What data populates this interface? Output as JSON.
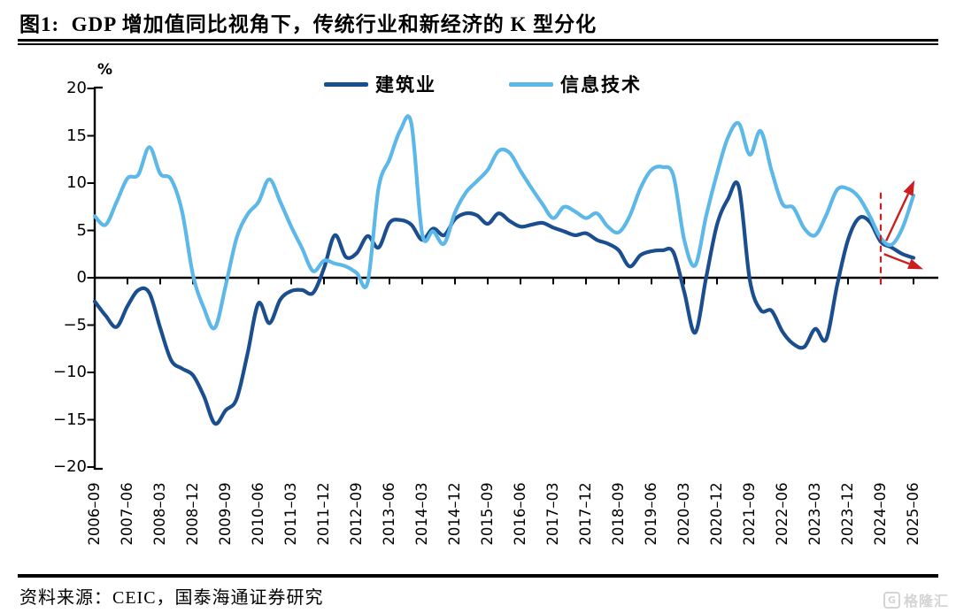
{
  "header": {
    "title": "图1:  GDP 增加值同比视角下，传统行业和新经济的 K 型分化"
  },
  "chart_meta": {
    "unit_label": "%"
  },
  "chart_data": {
    "type": "line",
    "title": "GDP 增加值同比视角下，传统行业和新经济的 K 型分化",
    "unit": "%",
    "ylim": [
      -20,
      20
    ],
    "y_ticks": [
      20,
      15,
      10,
      5,
      0,
      -5,
      -10,
      -15,
      -20
    ],
    "grid": false,
    "legend_position": "top-center",
    "x_tick_labels": [
      "2006-09",
      "2007-06",
      "2008-03",
      "2008-12",
      "2009-09",
      "2010-06",
      "2011-03",
      "2011-12",
      "2012-09",
      "2013-06",
      "2014-03",
      "2014-12",
      "2015-09",
      "2016-06",
      "2017-03",
      "2017-12",
      "2018-09",
      "2019-06",
      "2020-03",
      "2020-12",
      "2021-09",
      "2022-06",
      "2023-03",
      "2023-12",
      "2024-09",
      "2025-06"
    ],
    "x": [
      "2006-09",
      "2006-12",
      "2007-03",
      "2007-06",
      "2007-09",
      "2007-12",
      "2008-03",
      "2008-06",
      "2008-09",
      "2008-12",
      "2009-03",
      "2009-06",
      "2009-09",
      "2009-12",
      "2010-03",
      "2010-06",
      "2010-09",
      "2010-12",
      "2011-03",
      "2011-06",
      "2011-09",
      "2011-12",
      "2012-03",
      "2012-06",
      "2012-09",
      "2012-12",
      "2013-03",
      "2013-06",
      "2013-09",
      "2013-12",
      "2014-03",
      "2014-06",
      "2014-09",
      "2014-12",
      "2015-03",
      "2015-06",
      "2015-09",
      "2015-12",
      "2016-03",
      "2016-06",
      "2016-09",
      "2016-12",
      "2017-03",
      "2017-06",
      "2017-09",
      "2017-12",
      "2018-03",
      "2018-06",
      "2018-09",
      "2018-12",
      "2019-03",
      "2019-06",
      "2019-09",
      "2019-12",
      "2020-03",
      "2020-06",
      "2020-09",
      "2020-12",
      "2021-03",
      "2021-06",
      "2021-09",
      "2021-12",
      "2022-03",
      "2022-06",
      "2022-09",
      "2022-12",
      "2023-03",
      "2023-06",
      "2023-09",
      "2023-12",
      "2024-03",
      "2024-06",
      "2024-09",
      "2024-12",
      "2025-03",
      "2025-06"
    ],
    "series": [
      {
        "name": "建筑业",
        "color": "#1a4e8e",
        "values": [
          -2.5,
          -4.0,
          -5.2,
          -3.0,
          -1.3,
          -1.6,
          -5.3,
          -8.7,
          -9.6,
          -10.3,
          -12.5,
          -15.4,
          -14.0,
          -12.8,
          -8.0,
          -2.7,
          -4.8,
          -2.3,
          -1.4,
          -1.3,
          -1.6,
          1.0,
          4.5,
          2.2,
          2.6,
          4.4,
          3.2,
          5.8,
          6.1,
          5.6,
          4.0,
          5.2,
          4.5,
          6.2,
          6.8,
          6.6,
          5.7,
          6.8,
          6.0,
          5.4,
          5.6,
          5.8,
          5.3,
          4.9,
          4.5,
          4.7,
          4.0,
          3.6,
          2.9,
          1.2,
          2.4,
          2.8,
          2.9,
          2.7,
          -1.5,
          -5.8,
          0.0,
          5.6,
          8.3,
          9.6,
          -0.2,
          -3.4,
          -3.5,
          -5.7,
          -7.0,
          -7.3,
          -5.4,
          -6.5,
          -0.8,
          4.0,
          6.3,
          5.9,
          3.8,
          3.2,
          2.5,
          2.1
        ]
      },
      {
        "name": "信息技术",
        "color": "#5cb8e8",
        "values": [
          6.5,
          5.6,
          8.0,
          10.5,
          10.9,
          13.8,
          11.0,
          10.4,
          7.0,
          0.3,
          -3.2,
          -5.3,
          -0.8,
          4.2,
          6.7,
          8.0,
          10.4,
          8.0,
          5.4,
          3.1,
          0.7,
          1.8,
          1.5,
          1.2,
          0.5,
          -0.5,
          9.5,
          12.5,
          15.6,
          16.3,
          4.6,
          4.9,
          3.6,
          6.9,
          9.0,
          10.2,
          11.4,
          13.4,
          13.2,
          11.3,
          9.5,
          7.8,
          6.3,
          7.5,
          7.0,
          6.3,
          6.8,
          5.4,
          4.8,
          6.5,
          9.5,
          11.4,
          11.7,
          10.8,
          4.0,
          1.3,
          6.5,
          11.0,
          14.8,
          16.3,
          13.0,
          15.5,
          11.3,
          7.8,
          7.4,
          5.2,
          4.5,
          6.6,
          9.3,
          9.4,
          8.5,
          6.5,
          4.2,
          3.5,
          5.3,
          8.7
        ]
      }
    ],
    "annotations": {
      "dashed_vline": {
        "x": "2024-09",
        "v_top": 9.0,
        "v_bottom": -1.1,
        "color": "#cb1f1f"
      },
      "arrows": [
        {
          "name": "it-up-arrow",
          "color": "#cb1f1f",
          "from": {
            "q": 72.5,
            "v": 3.9
          },
          "to": {
            "q": 75.1,
            "v": 10.3
          }
        },
        {
          "name": "construction-down-arrow",
          "color": "#cb1f1f",
          "from": {
            "q": 72.3,
            "v": 2.5
          },
          "to": {
            "q": 75.9,
            "v": 0.9
          }
        }
      ]
    }
  },
  "footer": {
    "source": "资料来源：CEIC，国泰海通证券研究",
    "watermark": "格隆汇",
    "watermark_initial": "G"
  }
}
